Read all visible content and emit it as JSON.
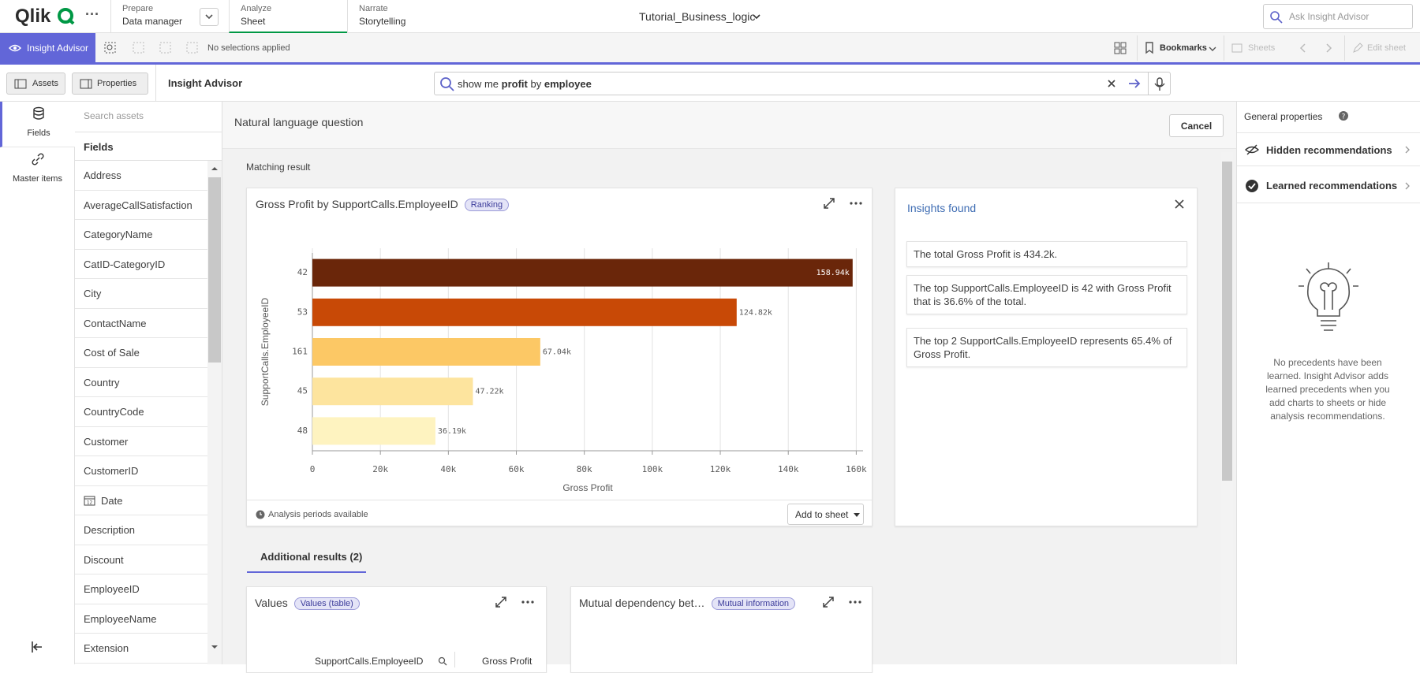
{
  "topbar": {
    "logo": "Qlik",
    "tabs": [
      {
        "label": "Prepare",
        "sub": "Data manager"
      },
      {
        "label": "Analyze",
        "sub": "Sheet"
      },
      {
        "label": "Narrate",
        "sub": "Storytelling"
      }
    ],
    "app_title": "Tutorial_Business_logic",
    "search_placeholder": "Ask Insight Advisor"
  },
  "toolbar": {
    "insight_advisor": "Insight Advisor",
    "selections": "No selections applied",
    "bookmarks": "Bookmarks",
    "sheets": "Sheets",
    "edit_sheet": "Edit sheet"
  },
  "subbar": {
    "assets": "Assets",
    "properties": "Properties",
    "title": "Insight Advisor",
    "query_parts": [
      "show me",
      "profit",
      "by",
      "employee"
    ]
  },
  "left_nav": [
    "Fields",
    "Master items"
  ],
  "fields_panel": {
    "search_placeholder": "Search assets",
    "heading": "Fields",
    "items": [
      "Address",
      "AverageCallSatisfaction",
      "CategoryName",
      "CatID-CategoryID",
      "City",
      "ContactName",
      "Cost of Sale",
      "Country",
      "CountryCode",
      "Customer",
      "CustomerID",
      "Date",
      "Description",
      "Discount",
      "EmployeeID",
      "EmployeeName",
      "Extension"
    ]
  },
  "main": {
    "heading": "Natural language question",
    "cancel": "Cancel",
    "matching": "Matching result",
    "chart": {
      "type": "bar",
      "title": "Gross Profit by SupportCalls.EmployeeID",
      "badge": "Ranking",
      "x_label": "Gross Profit",
      "y_label": "SupportCalls.EmployeeID",
      "categories": [
        "42",
        "53",
        "161",
        "45",
        "48"
      ],
      "values": [
        158940,
        124820,
        67040,
        47220,
        36190
      ],
      "value_labels": [
        "158.94k",
        "124.82k",
        "67.04k",
        "47.22k",
        "36.19k"
      ],
      "colors": [
        "#6a260a",
        "#c84906",
        "#fcc865",
        "#fde49e",
        "#fef3c0"
      ],
      "xlim": [
        0,
        162000
      ],
      "xticks": [
        0,
        {
          "value": 20000,
          "label": "20k"
        },
        {
          "value": 40000,
          "label": "40k"
        },
        {
          "value": 60000,
          "label": "60k"
        },
        {
          "value": 80000,
          "label": "80k"
        },
        {
          "value": 100000,
          "label": "100k"
        },
        {
          "value": 120000,
          "label": "120k"
        },
        {
          "value": 140000,
          "label": "140k"
        },
        {
          "value": 160000,
          "label": "160k"
        }
      ],
      "grid": true
    },
    "footer_note": "Analysis periods available",
    "add_to_sheet": "Add to sheet",
    "insights": {
      "title": "Insights found",
      "items": [
        "The total Gross Profit is 434.2k.",
        "The top SupportCalls.EmployeeID is 42 with Gross Profit that is 36.6% of the total.",
        "The top 2 SupportCalls.EmployeeID represents 65.4% of Gross Profit."
      ]
    },
    "additional_tab": "Additional results (2)",
    "cards": [
      {
        "title": "Values",
        "badge": "Values (table)",
        "columns": [
          "SupportCalls.EmployeeID",
          "Gross Profit"
        ]
      },
      {
        "title": "Mutual dependency bet…",
        "badge": "Mutual information"
      }
    ]
  },
  "right_panel": {
    "title": "General properties",
    "items": [
      "Hidden recommendations",
      "Learned recommendations"
    ],
    "empty_text": "No precedents have been learned. Insight Advisor adds learned precedents when you add charts to sheets or hide analysis recommendations."
  }
}
